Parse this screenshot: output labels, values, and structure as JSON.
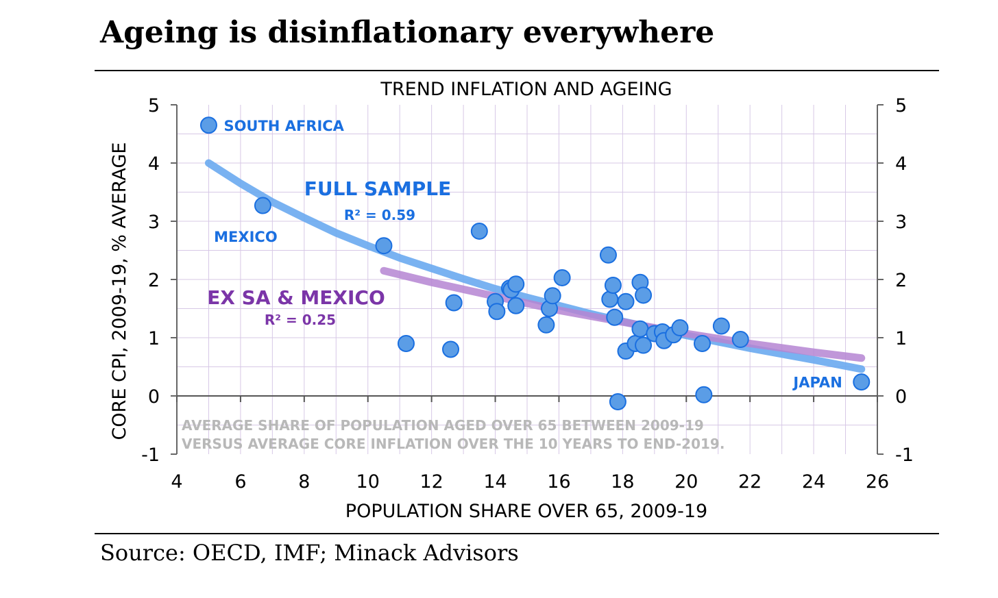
{
  "headline": "Ageing is disinflationary everywhere",
  "source": "Source: OECD, IMF; Minack Advisors",
  "chart_data": {
    "type": "scatter",
    "title": "TREND INFLATION AND AGEING",
    "xlabel": "POPULATION SHARE OVER 65, 2009-19",
    "ylabel": "CORE CPI, 2009-19, % AVERAGE",
    "xlim": [
      4,
      26
    ],
    "ylim": [
      -1,
      5
    ],
    "xticks": [
      4,
      6,
      8,
      10,
      12,
      14,
      16,
      18,
      20,
      22,
      24,
      26
    ],
    "yticks": [
      -1,
      0,
      1,
      2,
      3,
      4,
      5
    ],
    "grid": true,
    "note": [
      "AVERAGE SHARE OF POPULATION AGED OVER 65 BETWEEN 2009-19",
      "VERSUS AVERAGE CORE INFLATION OVER THE 10 YEARS TO END-2019."
    ],
    "colors": {
      "points": "#5b9de6",
      "point_edge": "#1a6fe0",
      "full_sample": "#6aaaf0",
      "ex_sa_mexico": "#b585d2",
      "label_blue": "#1a6fe0",
      "label_purple": "#7b35a8",
      "grid": "#d7c8e6",
      "note": "#b8b8b8"
    },
    "points": [
      {
        "x": 5.0,
        "y": 4.65,
        "label": "SOUTH AFRICA"
      },
      {
        "x": 6.7,
        "y": 3.27,
        "label": "MEXICO"
      },
      {
        "x": 10.5,
        "y": 2.58
      },
      {
        "x": 11.2,
        "y": 0.9
      },
      {
        "x": 12.6,
        "y": 0.8
      },
      {
        "x": 12.7,
        "y": 1.6
      },
      {
        "x": 13.5,
        "y": 2.83
      },
      {
        "x": 14.0,
        "y": 1.62
      },
      {
        "x": 14.05,
        "y": 1.45
      },
      {
        "x": 14.45,
        "y": 1.85
      },
      {
        "x": 14.5,
        "y": 1.82
      },
      {
        "x": 14.65,
        "y": 1.92
      },
      {
        "x": 14.65,
        "y": 1.55
      },
      {
        "x": 15.6,
        "y": 1.22
      },
      {
        "x": 15.7,
        "y": 1.5
      },
      {
        "x": 15.8,
        "y": 1.72
      },
      {
        "x": 16.1,
        "y": 2.03
      },
      {
        "x": 17.55,
        "y": 2.42
      },
      {
        "x": 17.6,
        "y": 1.66
      },
      {
        "x": 17.7,
        "y": 1.9
      },
      {
        "x": 17.75,
        "y": 1.35
      },
      {
        "x": 17.85,
        "y": -0.1
      },
      {
        "x": 18.1,
        "y": 1.62
      },
      {
        "x": 18.1,
        "y": 0.77
      },
      {
        "x": 18.4,
        "y": 0.9
      },
      {
        "x": 18.55,
        "y": 1.95
      },
      {
        "x": 18.55,
        "y": 1.15
      },
      {
        "x": 18.65,
        "y": 0.87
      },
      {
        "x": 18.65,
        "y": 1.73
      },
      {
        "x": 19.0,
        "y": 1.07
      },
      {
        "x": 19.25,
        "y": 1.1
      },
      {
        "x": 19.3,
        "y": 0.95
      },
      {
        "x": 19.6,
        "y": 1.05
      },
      {
        "x": 19.8,
        "y": 1.17
      },
      {
        "x": 20.5,
        "y": 0.9
      },
      {
        "x": 20.55,
        "y": 0.02
      },
      {
        "x": 21.1,
        "y": 1.2
      },
      {
        "x": 21.7,
        "y": 0.97
      },
      {
        "x": 25.5,
        "y": 0.24,
        "label": "JAPAN"
      }
    ],
    "series": [
      {
        "name": "FULL SAMPLE",
        "r2": "R² = 0.59",
        "x": [
          5.0,
          6,
          7,
          8,
          9,
          10,
          11,
          12,
          13,
          14,
          15,
          16,
          17,
          18,
          19,
          20,
          21,
          22,
          23,
          24,
          25.5
        ],
        "values": [
          4.0,
          3.65,
          3.33,
          3.06,
          2.8,
          2.58,
          2.37,
          2.19,
          2.01,
          1.84,
          1.69,
          1.55,
          1.41,
          1.28,
          1.16,
          1.04,
          0.93,
          0.82,
          0.72,
          0.62,
          0.46
        ]
      },
      {
        "name": "EX SA & MEXICO",
        "r2": "R² = 0.25",
        "x": [
          10.5,
          12,
          14,
          16,
          18,
          20,
          22,
          24,
          25.5
        ],
        "values": [
          2.15,
          1.95,
          1.71,
          1.47,
          1.27,
          1.07,
          0.9,
          0.75,
          0.65
        ]
      }
    ]
  }
}
